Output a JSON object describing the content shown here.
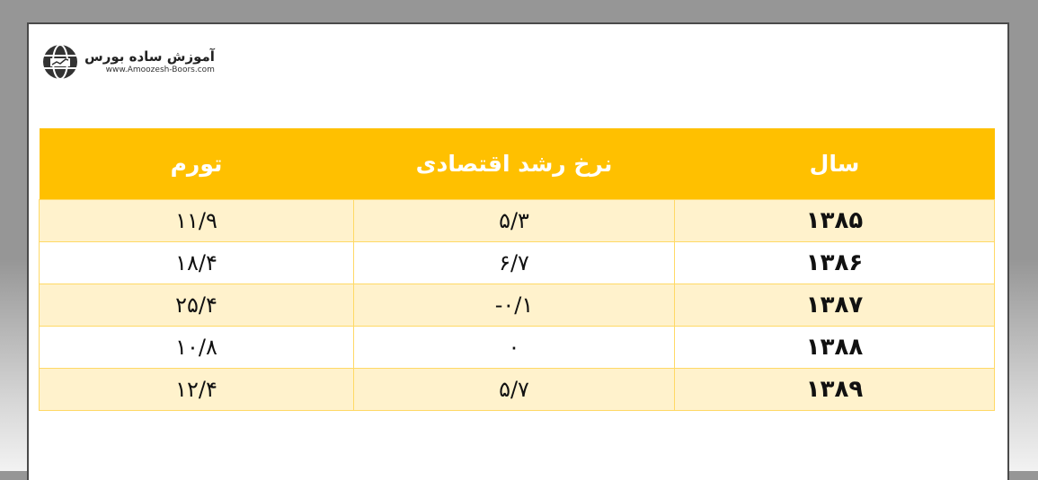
{
  "logo": {
    "title": "آموزش ساده بورس",
    "url": "www.Amoozesh-Boors.com"
  },
  "table": {
    "headers": [
      "سال",
      "نرخ رشد اقتصادی",
      "تورم"
    ],
    "rows": [
      [
        "۱۳۸۵",
        "۵/۳",
        "۱۱/۹"
      ],
      [
        "۱۳۸۶",
        "۶/۷",
        "۱۸/۴"
      ],
      [
        "۱۳۸۷",
        "-۰/۱",
        "۲۵/۴"
      ],
      [
        "۱۳۸۸",
        "۰",
        "۱۰/۸"
      ],
      [
        "۱۳۸۹",
        "۵/۷",
        "۱۲/۴"
      ]
    ]
  },
  "colors": {
    "header": "#ffc000",
    "row_alt": "#fff2cc",
    "border": "#ffd966"
  }
}
